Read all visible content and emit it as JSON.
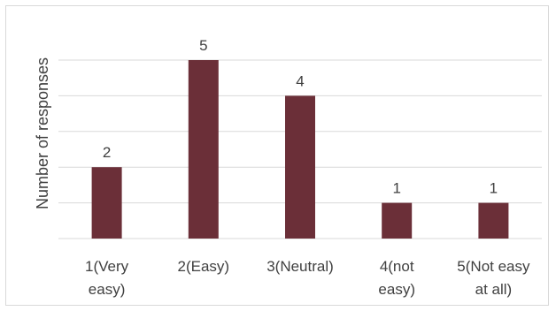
{
  "chart_data": {
    "type": "bar",
    "categories": [
      [
        "1(Very",
        "easy)"
      ],
      [
        "2(Easy)"
      ],
      [
        "3(Neutral)"
      ],
      [
        "4(not",
        "easy)"
      ],
      [
        "5(Not easy",
        "at all)"
      ]
    ],
    "values": [
      2,
      5,
      4,
      1,
      1
    ],
    "data_labels": [
      "2",
      "5",
      "4",
      "1",
      "1"
    ],
    "title": "",
    "xlabel": "",
    "ylabel": "Number of responses",
    "ylim": [
      0,
      5
    ],
    "grid": true,
    "legend": "none",
    "colors": {
      "bar": "#6b2f38",
      "grid": "#d9d9d9",
      "text": "#404040"
    }
  }
}
